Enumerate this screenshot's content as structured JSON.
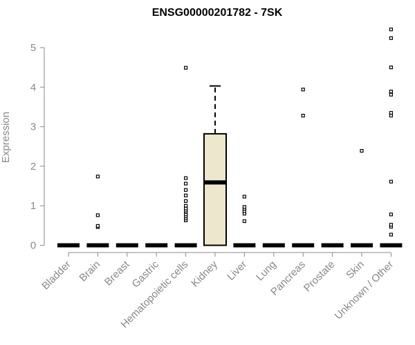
{
  "chart_data": {
    "type": "box",
    "title": "ENSG00000201782 - 7SK",
    "xlabel": "",
    "ylabel": "Expression",
    "ylim": [
      0,
      5.5
    ],
    "yticks": [
      0,
      1,
      2,
      3,
      4,
      5
    ],
    "categories": [
      "Bladder",
      "Brain",
      "Breast",
      "Gastric",
      "Hematopoietic cells",
      "Kidney",
      "Liver",
      "Lung",
      "Pancreas",
      "Prostate",
      "Skin",
      "Unknown / Other"
    ],
    "boxes": [
      {
        "category": "Bladder",
        "q1": 0,
        "median": 0,
        "q3": 0,
        "whisker_low": 0,
        "whisker_high": 0,
        "outliers": []
      },
      {
        "category": "Brain",
        "q1": 0,
        "median": 0,
        "q3": 0,
        "whisker_low": 0,
        "whisker_high": 0,
        "outliers": [
          0.46,
          0.49,
          0.76,
          1.74
        ]
      },
      {
        "category": "Breast",
        "q1": 0,
        "median": 0,
        "q3": 0,
        "whisker_low": 0,
        "whisker_high": 0,
        "outliers": []
      },
      {
        "category": "Gastric",
        "q1": 0,
        "median": 0,
        "q3": 0,
        "whisker_low": 0,
        "whisker_high": 0,
        "outliers": []
      },
      {
        "category": "Hematopoietic cells",
        "q1": 0,
        "median": 0,
        "q3": 0,
        "whisker_low": 0,
        "whisker_high": 0,
        "outliers": [
          0.63,
          0.68,
          0.73,
          0.78,
          0.84,
          0.88,
          0.93,
          1.0,
          1.12,
          1.26,
          1.4,
          1.56,
          1.7,
          4.49
        ]
      },
      {
        "category": "Kidney",
        "q1": 0,
        "median": 1.59,
        "q3": 2.82,
        "whisker_low": 0,
        "whisker_high": 4.03,
        "outliers": []
      },
      {
        "category": "Liver",
        "q1": 0,
        "median": 0,
        "q3": 0,
        "whisker_low": 0,
        "whisker_high": 0,
        "outliers": [
          0.61,
          0.8,
          0.86,
          0.92,
          0.97,
          1.23
        ]
      },
      {
        "category": "Lung",
        "q1": 0,
        "median": 0,
        "q3": 0,
        "whisker_low": 0,
        "whisker_high": 0,
        "outliers": []
      },
      {
        "category": "Pancreas",
        "q1": 0,
        "median": 0,
        "q3": 0,
        "whisker_low": 0,
        "whisker_high": 0,
        "outliers": [
          3.28,
          3.94
        ]
      },
      {
        "category": "Prostate",
        "q1": 0,
        "median": 0,
        "q3": 0,
        "whisker_low": 0,
        "whisker_high": 0,
        "outliers": []
      },
      {
        "category": "Skin",
        "q1": 0,
        "median": 0,
        "q3": 0,
        "whisker_low": 0,
        "whisker_high": 0,
        "outliers": [
          2.39
        ]
      },
      {
        "category": "Unknown / Other",
        "q1": 0,
        "median": 0,
        "q3": 0,
        "whisker_low": 0,
        "whisker_high": 0,
        "outliers": [
          0.27,
          0.47,
          0.52,
          0.78,
          1.61,
          3.28,
          3.35,
          3.81,
          3.89,
          4.5,
          5.24,
          5.46
        ]
      }
    ],
    "box_fill": "#ede7cd",
    "grid": false,
    "legend": "none"
  }
}
